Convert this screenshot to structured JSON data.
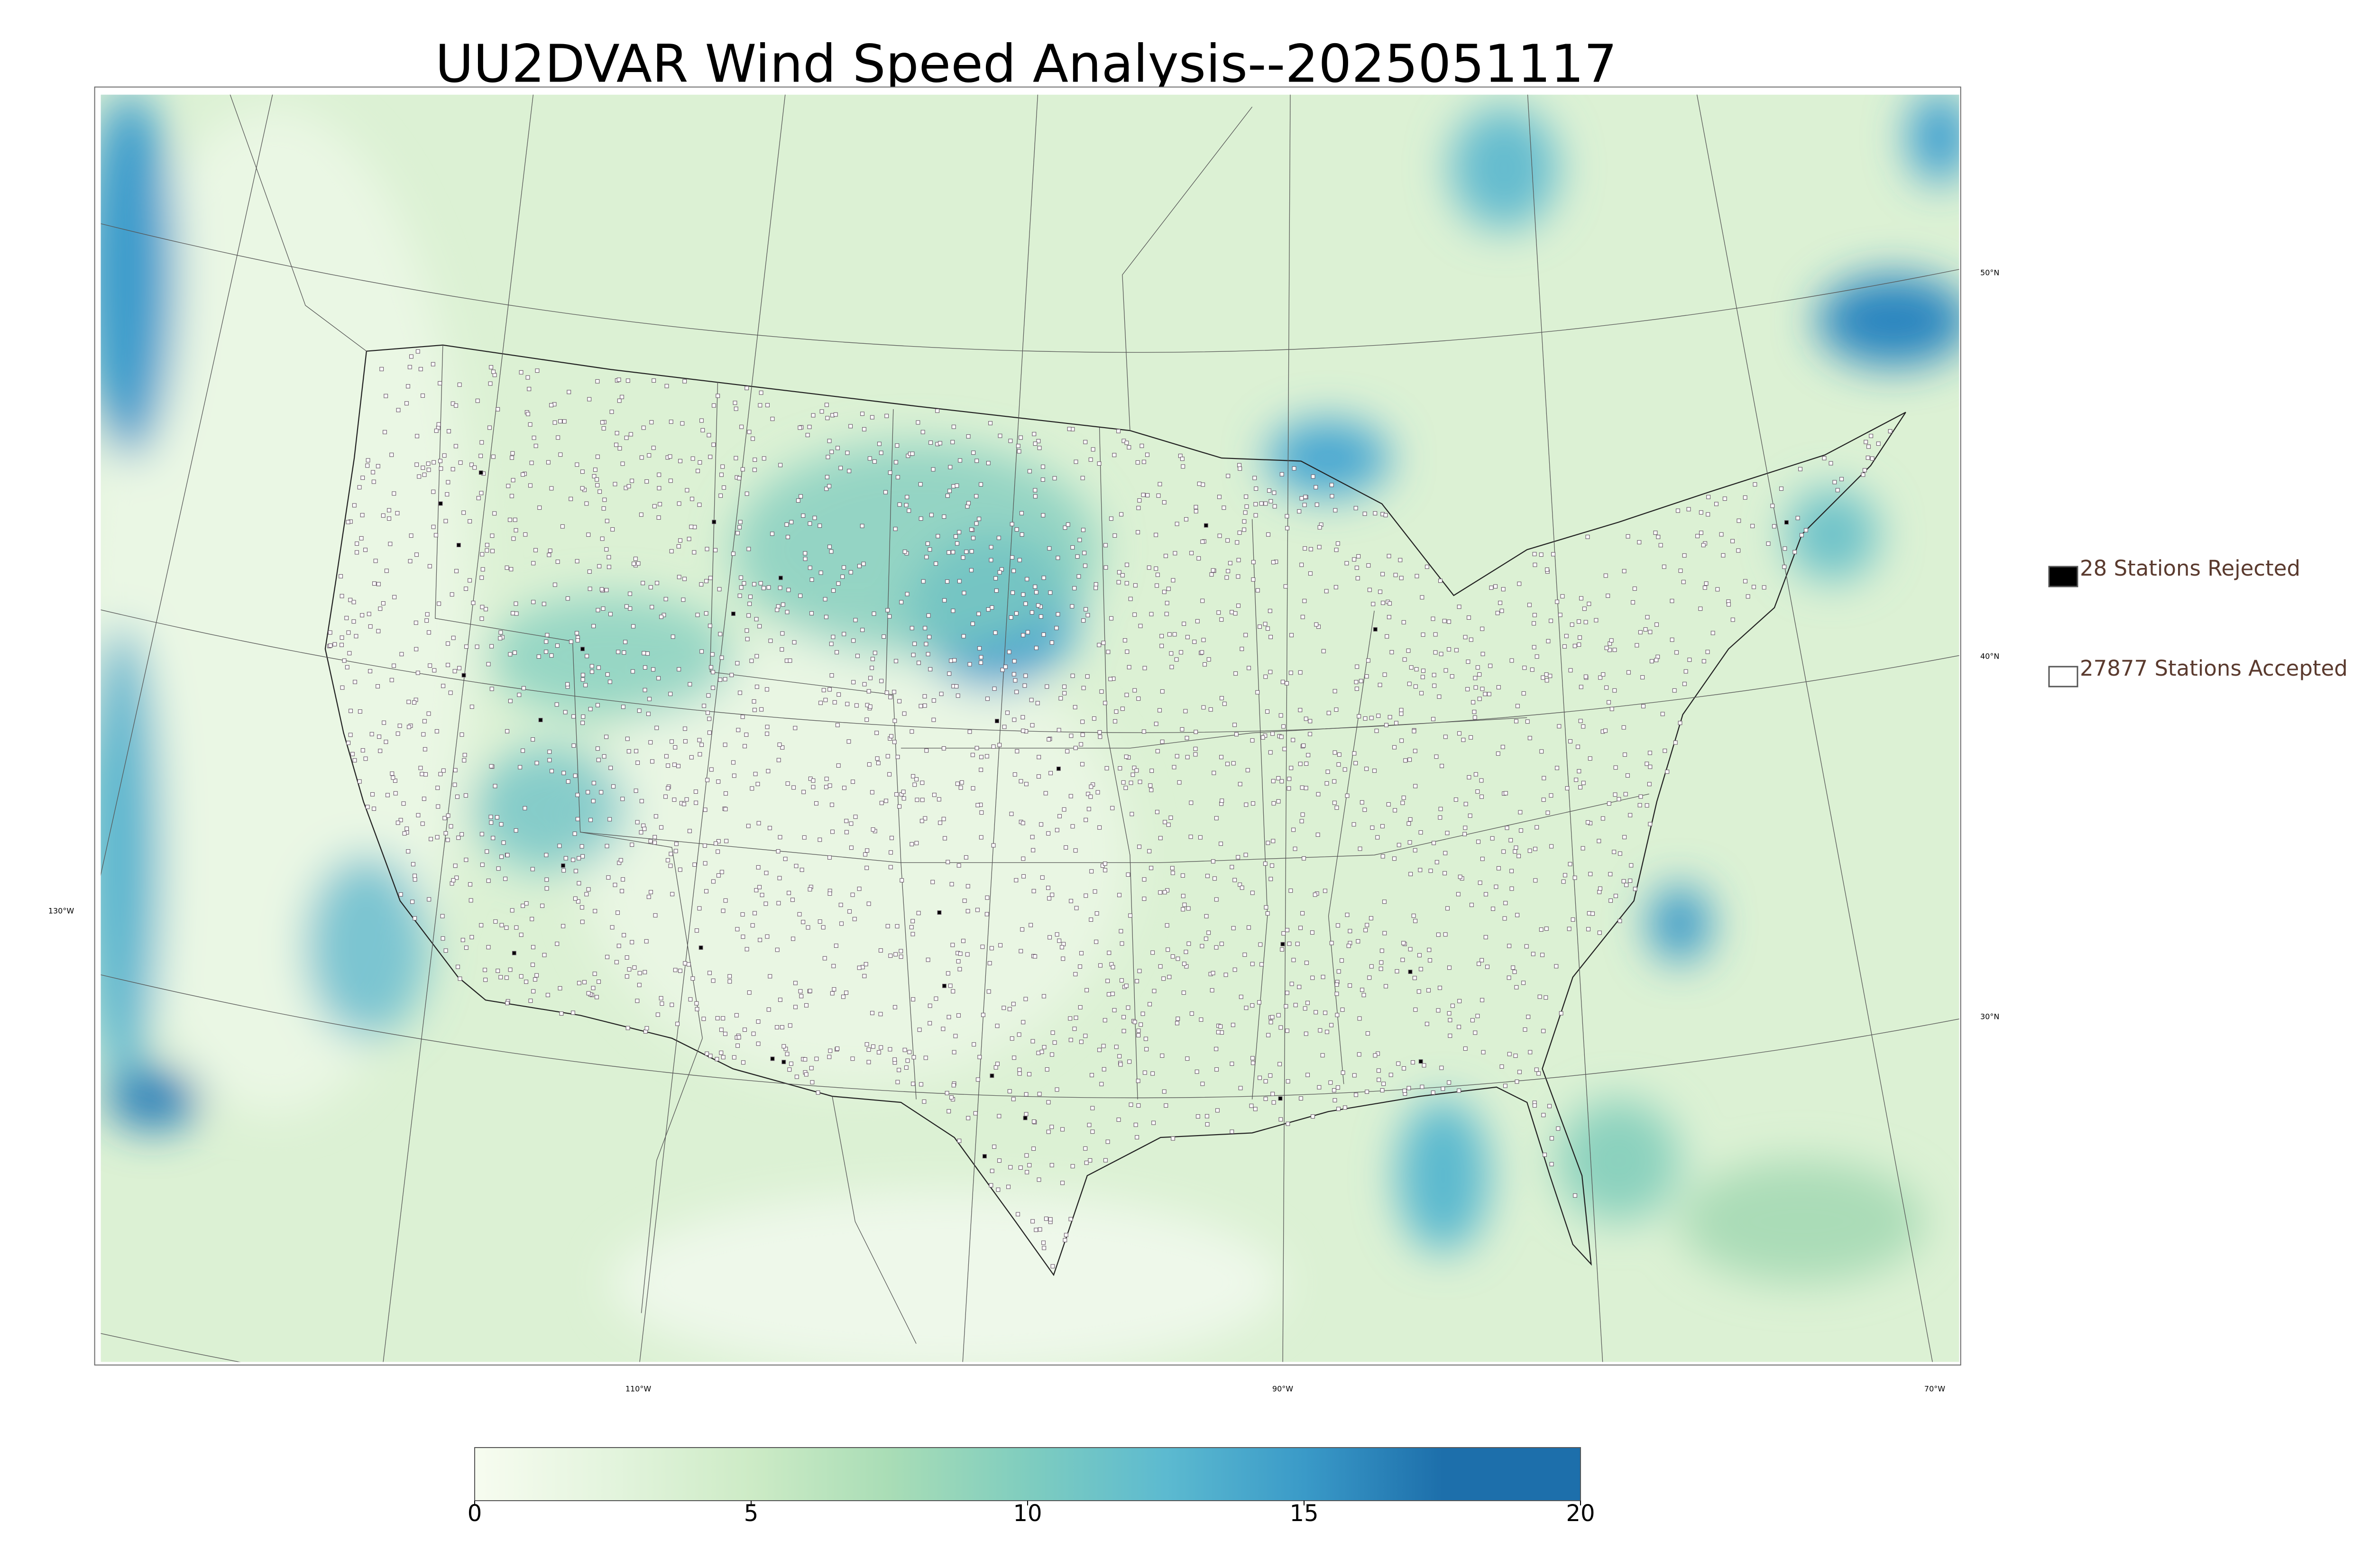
{
  "title": "UU2DVAR Wind Speed Analysis--2025051117",
  "legend": [
    {
      "label": "28 Stations Rejected",
      "color": "#000000"
    },
    {
      "label": "27877 Stations Accepted",
      "color": "#ffffff"
    }
  ],
  "graticule": {
    "latitudes": [
      "50°N",
      "40°N",
      "30°N"
    ],
    "longitudes": [
      "130°W",
      "110°W",
      "90°W",
      "70°W"
    ]
  },
  "colorbar": {
    "lim": [
      0,
      20
    ],
    "ticks": [
      0,
      5,
      10,
      15,
      20
    ],
    "colors": [
      "#f7fcf0",
      "#e3f4dd",
      "#cdebc6",
      "#a9ddb6",
      "#7fcdbf",
      "#5cbad0",
      "#3a9ac8",
      "#1d6fab",
      "#1d6fab"
    ]
  }
}
